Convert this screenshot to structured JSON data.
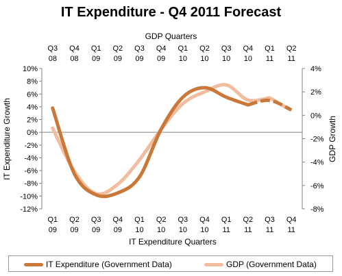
{
  "chart_data": {
    "type": "line",
    "title": "IT Expenditure - Q4 2011 Forecast",
    "top_axis_title": "GDP Quarters",
    "bottom_axis_title": "IT Expenditure Quarters",
    "left_axis_title": "IT Expenditure Growth",
    "right_axis_title": "GDP Growth",
    "top_categories": [
      [
        "Q3",
        "08"
      ],
      [
        "Q4",
        "08"
      ],
      [
        "Q1",
        "09"
      ],
      [
        "Q2",
        "09"
      ],
      [
        "Q3",
        "09"
      ],
      [
        "Q4",
        "09"
      ],
      [
        "Q1",
        "10"
      ],
      [
        "Q2",
        "10"
      ],
      [
        "Q3",
        "10"
      ],
      [
        "Q4",
        "10"
      ],
      [
        "Q1",
        "11"
      ],
      [
        "Q2",
        "11"
      ]
    ],
    "bottom_categories": [
      [
        "Q1",
        "09"
      ],
      [
        "Q2",
        "09"
      ],
      [
        "Q3",
        "09"
      ],
      [
        "Q4",
        "09"
      ],
      [
        "Q1",
        "10"
      ],
      [
        "Q2",
        "10"
      ],
      [
        "Q3",
        "10"
      ],
      [
        "Q4",
        "10"
      ],
      [
        "Q1",
        "11"
      ],
      [
        "Q2",
        "11"
      ],
      [
        "Q3",
        "11"
      ],
      [
        "Q4",
        "11"
      ]
    ],
    "left_axis": {
      "min": -12,
      "max": 10,
      "step": 2,
      "ticks": [
        "10%",
        "8%",
        "6%",
        "4%",
        "2%",
        "0%",
        "-2%",
        "-4%",
        "-6%",
        "-8%",
        "-10%",
        "-12%"
      ]
    },
    "right_axis": {
      "min": -8,
      "max": 4,
      "step": 2,
      "ticks": [
        "4%",
        "2%",
        "0%",
        "-2%",
        "-4%",
        "-6%",
        "-8%"
      ]
    },
    "gridlines": false,
    "legend_position": "bottom",
    "series": [
      {
        "name": "IT Expenditure (Government  Data)",
        "axis": "left",
        "color": "#c9783a",
        "values": [
          3.8,
          -6.5,
          -9.8,
          -9.5,
          -7.0,
          0.5,
          5.5,
          7.0,
          5.5,
          4.3,
          5.0,
          3.5
        ],
        "dashed_from_index": 9
      },
      {
        "name": "GDP (Government  Data)",
        "axis": "right",
        "color": "#f2bd9e",
        "values": [
          -1.1,
          -4.8,
          -6.7,
          -5.9,
          -3.8,
          -1.2,
          1.0,
          2.0,
          2.6,
          1.3,
          1.5,
          0.4
        ],
        "dashed_from_index": 10
      }
    ]
  }
}
